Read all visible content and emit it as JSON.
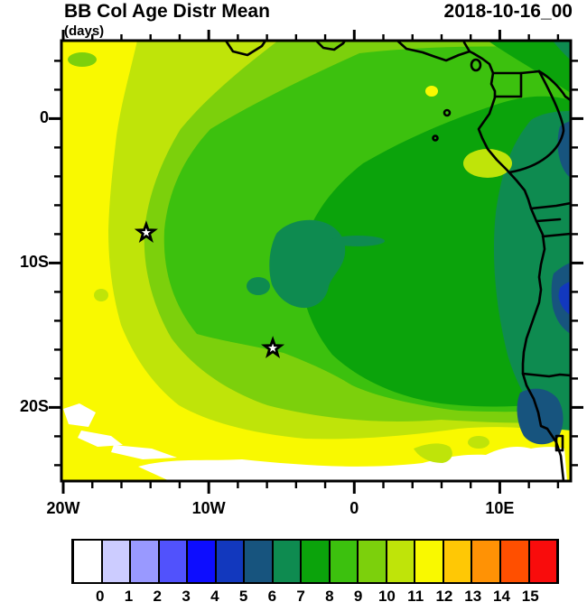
{
  "header": {
    "title_left": "BB Col Age Distr Mean",
    "title_right": "2018-10-16_00",
    "units_label": "(days)"
  },
  "chart_data": {
    "type": "heatmap",
    "variant": "filled-contour lat/lon map",
    "title": "BB Col Age Distr Mean",
    "time_label": "2018-10-16_00",
    "units": "(days)",
    "x_axis": {
      "ticks": [
        {
          "label": "20W",
          "lon": -20
        },
        {
          "label": "10W",
          "lon": -10
        },
        {
          "label": "0",
          "lon": 0
        },
        {
          "label": "10E",
          "lon": 10
        }
      ],
      "minor_tick_interval_deg": 2,
      "lon_range": [
        -20.1,
        14.9
      ]
    },
    "y_axis": {
      "ticks": [
        {
          "label": "0",
          "lat": 0
        },
        {
          "label": "10S",
          "lat": -10
        },
        {
          "label": "20S",
          "lat": -20
        }
      ],
      "minor_tick_interval_deg": 2,
      "lat_range": [
        -25.1,
        5.4
      ]
    },
    "colorbar": {
      "tick_labels": [
        "0",
        "1",
        "2",
        "3",
        "4",
        "5",
        "6",
        "7",
        "8",
        "9",
        "10",
        "11",
        "12",
        "13",
        "14",
        "15"
      ],
      "colors": [
        "#FFFFFF",
        "#CCCCFF",
        "#9999FF",
        "#5152FC",
        "#0D0DFF",
        "#1238BE",
        "#17547E",
        "#0E8B50",
        "#0BA30B",
        "#3CC10E",
        "#7CD00C",
        "#BFE409",
        "#F9F900",
        "#FFC805",
        "#FF9205",
        "#FF4F00",
        "#F90C0C"
      ],
      "outline_color": "#000000"
    },
    "markers": [
      {
        "id": "star-1",
        "symbol": "star",
        "lon": -14.3,
        "lat": -7.9
      },
      {
        "id": "star-2",
        "symbol": "star",
        "lon": -5.6,
        "lat": -15.9
      }
    ],
    "field_bands": [
      {
        "range_days": "below 0 (off-scale)",
        "color": "#FFFFFF",
        "where": "southern margin ~23S-25S and small streaks near 21S-20W"
      },
      {
        "range_days": "11-12",
        "color": "#F9F900",
        "where": "western margin and broad southern band"
      },
      {
        "range_days": "10-11",
        "color": "#BFE409",
        "where": "ring inside the yellow margin, NW quadrant and south fringe"
      },
      {
        "range_days": "9-10",
        "color": "#7CD00C",
        "where": "broad band around the core, passes through star marker 1"
      },
      {
        "range_days": "8-9",
        "color": "#3CC10E",
        "where": "ring around core, passes near star marker 2"
      },
      {
        "range_days": "7-8",
        "color": "#0BA30B",
        "where": "large central and eastern region including most land"
      },
      {
        "range_days": "6-7",
        "color": "#0E8B50",
        "where": "core pockets near 10-12S, 2-5W and along the Angola coast / NE corner"
      },
      {
        "range_days": "5-6",
        "color": "#17547E",
        "where": "narrow strips at the east map edge ~12-14S and near the coast ~19-22S"
      },
      {
        "range_days": "4-5",
        "color": "#1238BE",
        "where": "small patch at the east map edge near 13S"
      }
    ],
    "map_features": [
      "west-central African coastline",
      "country borders (Eq. Guinea, Gabon, Congo, Angola, Namibia)",
      "islands: Bioko, Principe, Sao Tome"
    ]
  }
}
